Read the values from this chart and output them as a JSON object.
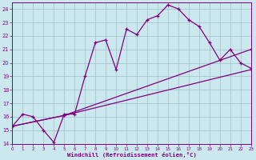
{
  "xlabel": "Windchill (Refroidissement éolien,°C)",
  "xlim": [
    0,
    23
  ],
  "ylim": [
    14,
    24.5
  ],
  "yticks": [
    14,
    15,
    16,
    17,
    18,
    19,
    20,
    21,
    22,
    23,
    24
  ],
  "xticks": [
    0,
    1,
    2,
    3,
    4,
    5,
    6,
    7,
    8,
    9,
    10,
    11,
    12,
    13,
    14,
    15,
    16,
    17,
    18,
    19,
    20,
    21,
    22,
    23
  ],
  "bg_color": "#cce8ef",
  "line_color": "#800080",
  "grid_color": "#a0bfc8",
  "series1_x": [
    0,
    1,
    2,
    3,
    4,
    5,
    6,
    7,
    8,
    9,
    10,
    11,
    12,
    13,
    14,
    15,
    16,
    17,
    18,
    19,
    20,
    21,
    22,
    23
  ],
  "series1_y": [
    15.3,
    16.2,
    16.0,
    15.0,
    14.1,
    16.2,
    16.2,
    19.0,
    21.5,
    21.7,
    19.5,
    22.5,
    22.1,
    23.2,
    23.5,
    24.3,
    24.0,
    23.2,
    22.7,
    21.5,
    20.2,
    21.0,
    20.0,
    19.6
  ],
  "series2_x": [
    0,
    5,
    23
  ],
  "series2_y": [
    15.3,
    16.1,
    19.5
  ],
  "series3_x": [
    0,
    5,
    23
  ],
  "series3_y": [
    15.3,
    16.1,
    21.0
  ]
}
